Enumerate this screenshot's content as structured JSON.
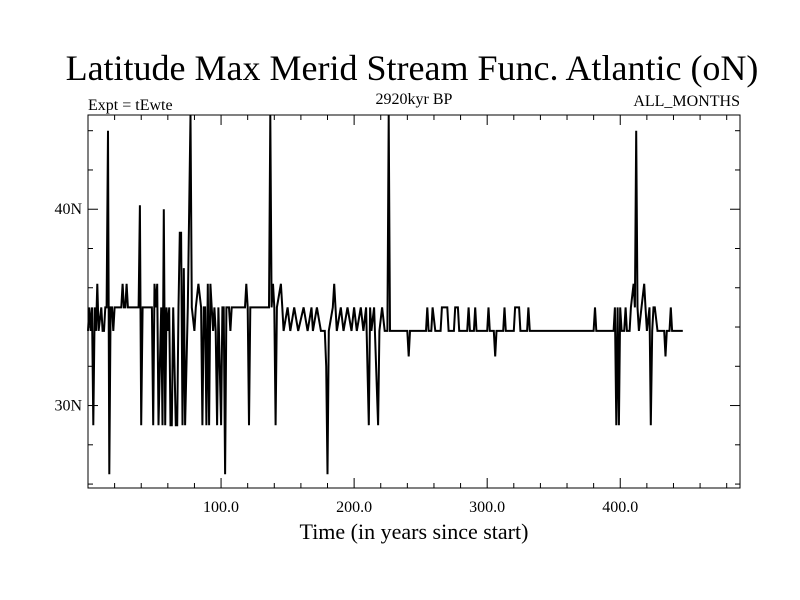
{
  "chart_data": {
    "type": "line",
    "title": "Latitude Max Merid Stream Func. Atlantic (oN)",
    "subtitle_left": "Expt = tEwte",
    "subtitle_center": "2920kyr BP",
    "subtitle_right": "ALL_MONTHS",
    "xlabel": "Time (in years since start)",
    "ylabel": "",
    "xlim": [
      0,
      490
    ],
    "ylim": [
      25.8,
      44.8
    ],
    "x_ticks": [
      {
        "value": 100,
        "label": "100.0"
      },
      {
        "value": 200,
        "label": "200.0"
      },
      {
        "value": 300,
        "label": "300.0"
      },
      {
        "value": 400,
        "label": "400.0"
      }
    ],
    "y_ticks": [
      {
        "value": 30,
        "label": "30N"
      },
      {
        "value": 40,
        "label": "40N"
      }
    ],
    "x_minor_step": 20,
    "y_minor_step": 2,
    "grid": false,
    "legend": "none",
    "line_color": "#000000",
    "series": [
      {
        "points": [
          [
            0,
            33.8
          ],
          [
            1,
            35
          ],
          [
            2,
            33.8
          ],
          [
            3,
            35
          ],
          [
            4,
            29
          ],
          [
            5,
            35
          ],
          [
            6,
            33.8
          ],
          [
            7,
            36.2
          ],
          [
            8,
            33.8
          ],
          [
            10,
            35
          ],
          [
            11,
            33.8
          ],
          [
            12,
            33.8
          ],
          [
            13,
            35
          ],
          [
            14,
            35
          ],
          [
            15,
            44
          ],
          [
            16,
            26.5
          ],
          [
            17,
            35
          ],
          [
            18,
            35
          ],
          [
            19,
            33.8
          ],
          [
            20,
            35
          ],
          [
            25,
            35
          ],
          [
            26,
            36.2
          ],
          [
            27,
            35
          ],
          [
            28,
            35
          ],
          [
            29,
            36.2
          ],
          [
            30,
            35
          ],
          [
            35,
            35
          ],
          [
            38,
            35
          ],
          [
            39,
            40.2
          ],
          [
            40,
            29
          ],
          [
            41,
            35
          ],
          [
            45,
            35
          ],
          [
            48,
            35
          ],
          [
            49,
            29
          ],
          [
            50,
            36.2
          ],
          [
            51,
            35
          ],
          [
            52,
            36.2
          ],
          [
            53,
            29
          ],
          [
            55,
            35
          ],
          [
            56,
            29
          ],
          [
            57,
            40
          ],
          [
            58,
            29
          ],
          [
            59,
            35
          ],
          [
            60,
            33.8
          ],
          [
            61,
            35
          ],
          [
            62,
            29
          ],
          [
            63,
            29
          ],
          [
            64,
            35
          ],
          [
            66,
            29
          ],
          [
            67,
            29
          ],
          [
            68,
            35
          ],
          [
            69,
            38.8
          ],
          [
            70,
            38.8
          ],
          [
            71,
            29
          ],
          [
            72,
            37
          ],
          [
            73,
            29
          ],
          [
            75,
            35
          ],
          [
            77,
            45
          ],
          [
            78,
            35
          ],
          [
            80,
            33.8
          ],
          [
            81,
            35
          ],
          [
            83,
            36.2
          ],
          [
            85,
            35
          ],
          [
            86,
            29
          ],
          [
            87,
            35
          ],
          [
            88,
            35
          ],
          [
            89,
            29
          ],
          [
            90,
            36.2
          ],
          [
            91,
            29
          ],
          [
            92,
            36.2
          ],
          [
            93,
            35
          ],
          [
            94,
            33.8
          ],
          [
            95,
            35
          ],
          [
            96,
            33.8
          ],
          [
            97,
            29
          ],
          [
            98,
            35
          ],
          [
            100,
            29
          ],
          [
            101,
            35
          ],
          [
            102,
            35
          ],
          [
            103,
            26.5
          ],
          [
            104,
            35
          ],
          [
            105,
            35
          ],
          [
            106,
            35
          ],
          [
            107,
            33.8
          ],
          [
            108,
            35
          ],
          [
            109,
            35
          ],
          [
            115,
            35
          ],
          [
            118,
            35
          ],
          [
            119,
            36.2
          ],
          [
            120,
            35
          ],
          [
            121,
            29
          ],
          [
            122,
            35
          ],
          [
            125,
            35
          ],
          [
            130,
            35
          ],
          [
            136,
            35
          ],
          [
            137,
            45
          ],
          [
            138,
            35
          ],
          [
            139,
            36.2
          ],
          [
            140,
            35
          ],
          [
            141,
            29
          ],
          [
            142,
            35
          ],
          [
            145,
            36.2
          ],
          [
            146,
            35
          ],
          [
            147,
            33.8
          ],
          [
            150,
            35
          ],
          [
            152,
            33.8
          ],
          [
            155,
            35
          ],
          [
            158,
            33.8
          ],
          [
            162,
            35
          ],
          [
            165,
            33.8
          ],
          [
            168,
            35
          ],
          [
            169,
            33.8
          ],
          [
            172,
            35
          ],
          [
            175,
            33.8
          ],
          [
            178,
            33.8
          ],
          [
            179,
            32
          ],
          [
            180,
            26.5
          ],
          [
            181,
            33.8
          ],
          [
            184,
            35
          ],
          [
            185,
            36.2
          ],
          [
            186,
            35
          ],
          [
            187,
            33.8
          ],
          [
            190,
            35
          ],
          [
            192,
            33.8
          ],
          [
            195,
            35
          ],
          [
            198,
            33.8
          ],
          [
            200,
            35
          ],
          [
            202,
            33.8
          ],
          [
            205,
            35
          ],
          [
            207,
            33.8
          ],
          [
            209,
            35
          ],
          [
            211,
            29
          ],
          [
            212,
            35
          ],
          [
            213,
            33.8
          ],
          [
            215,
            35
          ],
          [
            218,
            29
          ],
          [
            219,
            33.8
          ],
          [
            221,
            35
          ],
          [
            223,
            33.8
          ],
          [
            225,
            33.8
          ],
          [
            226,
            45
          ],
          [
            227,
            33.8
          ],
          [
            230,
            33.8
          ],
          [
            240,
            33.8
          ],
          [
            241,
            32.5
          ],
          [
            242,
            33.8
          ],
          [
            250,
            33.8
          ],
          [
            254,
            33.8
          ],
          [
            255,
            35
          ],
          [
            256,
            33.8
          ],
          [
            258,
            33.8
          ],
          [
            259,
            35
          ],
          [
            261,
            33.8
          ],
          [
            265,
            33.8
          ],
          [
            266,
            35
          ],
          [
            270,
            35
          ],
          [
            271,
            33.8
          ],
          [
            275,
            33.8
          ],
          [
            276,
            35
          ],
          [
            278,
            35
          ],
          [
            279,
            33.8
          ],
          [
            285,
            33.8
          ],
          [
            286,
            35
          ],
          [
            287,
            33.8
          ],
          [
            290,
            33.8
          ],
          [
            291,
            35
          ],
          [
            292,
            33.8
          ],
          [
            300,
            33.8
          ],
          [
            301,
            35
          ],
          [
            302,
            33.8
          ],
          [
            305,
            33.8
          ],
          [
            306,
            32.5
          ],
          [
            307,
            33.8
          ],
          [
            312,
            33.8
          ],
          [
            313,
            35
          ],
          [
            314,
            33.8
          ],
          [
            320,
            33.8
          ],
          [
            321,
            35
          ],
          [
            324,
            35
          ],
          [
            325,
            33.8
          ],
          [
            330,
            33.8
          ],
          [
            331,
            35
          ],
          [
            332,
            33.8
          ],
          [
            340,
            33.8
          ],
          [
            350,
            33.8
          ],
          [
            360,
            33.8
          ],
          [
            370,
            33.8
          ],
          [
            380,
            33.8
          ],
          [
            381,
            35
          ],
          [
            382,
            33.8
          ],
          [
            390,
            33.8
          ],
          [
            395,
            33.8
          ],
          [
            396,
            35
          ],
          [
            397,
            29
          ],
          [
            398,
            35
          ],
          [
            399,
            29
          ],
          [
            400,
            35
          ],
          [
            401,
            33.8
          ],
          [
            403,
            33.8
          ],
          [
            404,
            35
          ],
          [
            405,
            33.8
          ],
          [
            407,
            33.8
          ],
          [
            408,
            35
          ],
          [
            410,
            36.2
          ],
          [
            411,
            35
          ],
          [
            412,
            44
          ],
          [
            413,
            35
          ],
          [
            414,
            33.8
          ],
          [
            416,
            35
          ],
          [
            418,
            36.2
          ],
          [
            419,
            35
          ],
          [
            420,
            33.8
          ],
          [
            422,
            35
          ],
          [
            423,
            29
          ],
          [
            424,
            33.8
          ],
          [
            425,
            35
          ],
          [
            426,
            35
          ],
          [
            428,
            33.8
          ],
          [
            430,
            33.8
          ],
          [
            433,
            33.8
          ],
          [
            434,
            32.5
          ],
          [
            435,
            33.8
          ],
          [
            437,
            33.8
          ],
          [
            438,
            35
          ],
          [
            439,
            33.8
          ],
          [
            445,
            33.8
          ],
          [
            447,
            33.8
          ]
        ]
      }
    ]
  }
}
